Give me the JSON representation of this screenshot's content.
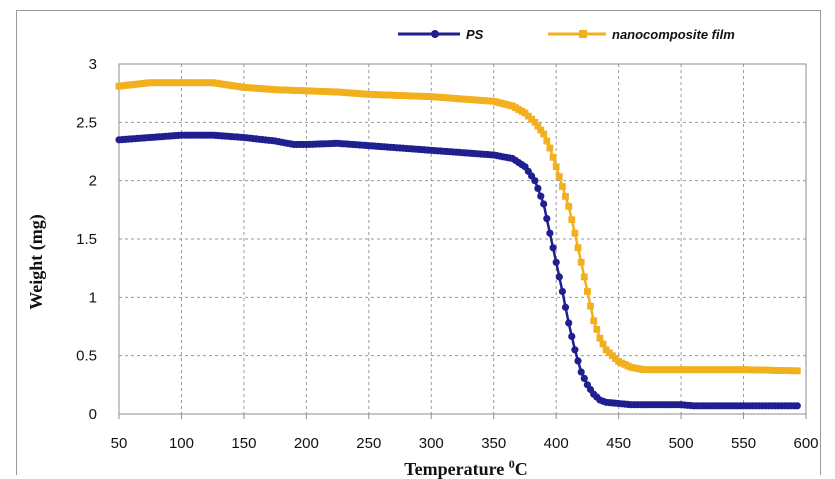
{
  "chart_data": {
    "type": "scatter",
    "title": "",
    "xlabel": "Temperature °C",
    "xlabel_main": "Temperature ",
    "xlabel_sup": "0",
    "xlabel_unit": "C",
    "ylabel": "Weight (mg)",
    "xlim": [
      50,
      600
    ],
    "ylim": [
      0,
      3
    ],
    "xticks": [
      50,
      100,
      150,
      200,
      250,
      300,
      350,
      400,
      450,
      500,
      550,
      600
    ],
    "yticks": [
      0,
      0.5,
      1,
      1.5,
      2,
      2.5,
      3
    ],
    "grid": true,
    "legend_position": "top-right",
    "series": [
      {
        "name": "PS",
        "color": "#1f1f8f",
        "marker": "circle",
        "points": [
          [
            50,
            2.35
          ],
          [
            75,
            2.37
          ],
          [
            100,
            2.39
          ],
          [
            125,
            2.39
          ],
          [
            150,
            2.37
          ],
          [
            175,
            2.34
          ],
          [
            190,
            2.31
          ],
          [
            200,
            2.31
          ],
          [
            225,
            2.32
          ],
          [
            250,
            2.3
          ],
          [
            275,
            2.28
          ],
          [
            300,
            2.26
          ],
          [
            325,
            2.24
          ],
          [
            350,
            2.22
          ],
          [
            365,
            2.19
          ],
          [
            375,
            2.12
          ],
          [
            383,
            2.0
          ],
          [
            390,
            1.8
          ],
          [
            395,
            1.55
          ],
          [
            400,
            1.3
          ],
          [
            405,
            1.05
          ],
          [
            410,
            0.78
          ],
          [
            415,
            0.55
          ],
          [
            420,
            0.36
          ],
          [
            425,
            0.25
          ],
          [
            430,
            0.17
          ],
          [
            435,
            0.12
          ],
          [
            440,
            0.1
          ],
          [
            450,
            0.09
          ],
          [
            460,
            0.08
          ],
          [
            500,
            0.08
          ],
          [
            510,
            0.07
          ],
          [
            550,
            0.07
          ],
          [
            593,
            0.07
          ]
        ]
      },
      {
        "name": "nanocomposite film",
        "color": "#f2b01e",
        "marker": "square",
        "points": [
          [
            50,
            2.81
          ],
          [
            75,
            2.84
          ],
          [
            100,
            2.84
          ],
          [
            125,
            2.84
          ],
          [
            150,
            2.8
          ],
          [
            175,
            2.78
          ],
          [
            200,
            2.77
          ],
          [
            225,
            2.76
          ],
          [
            250,
            2.74
          ],
          [
            275,
            2.73
          ],
          [
            300,
            2.72
          ],
          [
            325,
            2.7
          ],
          [
            350,
            2.68
          ],
          [
            365,
            2.64
          ],
          [
            375,
            2.58
          ],
          [
            383,
            2.5
          ],
          [
            390,
            2.4
          ],
          [
            395,
            2.28
          ],
          [
            400,
            2.12
          ],
          [
            405,
            1.95
          ],
          [
            410,
            1.78
          ],
          [
            415,
            1.55
          ],
          [
            420,
            1.3
          ],
          [
            425,
            1.05
          ],
          [
            430,
            0.8
          ],
          [
            435,
            0.65
          ],
          [
            440,
            0.55
          ],
          [
            450,
            0.45
          ],
          [
            460,
            0.4
          ],
          [
            470,
            0.38
          ],
          [
            500,
            0.38
          ],
          [
            550,
            0.38
          ],
          [
            593,
            0.37
          ]
        ]
      }
    ]
  }
}
